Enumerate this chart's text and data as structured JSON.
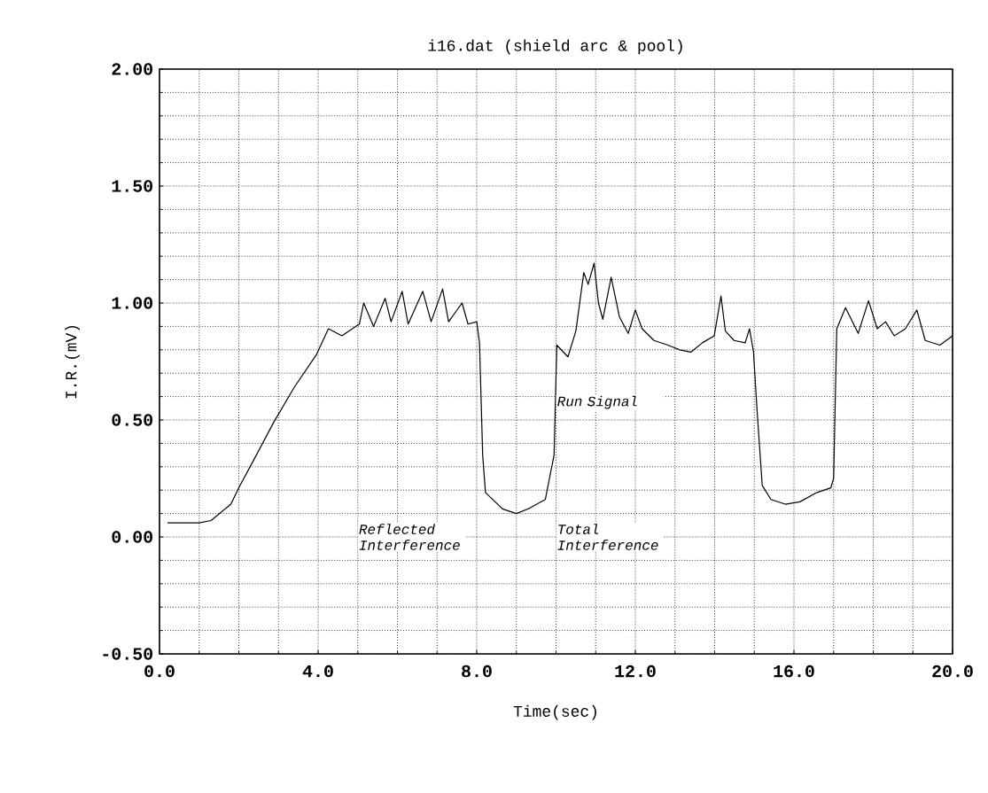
{
  "chart_data": {
    "type": "line",
    "title": "i16.dat (shield arc & pool)",
    "xlabel": "Time(sec)",
    "ylabel": "I.R.(mV)",
    "xlim": [
      0,
      20
    ],
    "ylim": [
      -0.5,
      2
    ],
    "xticks": [
      {
        "value": 0,
        "label": "0.0"
      },
      {
        "value": 4,
        "label": "4.0"
      },
      {
        "value": 8,
        "label": "8.0"
      },
      {
        "value": 12,
        "label": "12.0"
      },
      {
        "value": 16,
        "label": "16.0"
      },
      {
        "value": 20,
        "label": "20.0"
      }
    ],
    "yticks": [
      {
        "value": -0.5,
        "label": "-0.50"
      },
      {
        "value": 0,
        "label": "0.00"
      },
      {
        "value": 0.5,
        "label": "0.50"
      },
      {
        "value": 1,
        "label": "1.00"
      },
      {
        "value": 1.5,
        "label": "1.50"
      },
      {
        "value": 2,
        "label": "2.00"
      }
    ],
    "grid": true,
    "color": "#000000",
    "line_style": "solid",
    "x": [
      0.2,
      1.0,
      1.3,
      1.8,
      2.0,
      2.38,
      2.88,
      3.4,
      3.96,
      4.26,
      4.6,
      5.04,
      5.15,
      5.4,
      5.69,
      5.84,
      6.12,
      6.27,
      6.64,
      6.85,
      7.14,
      7.29,
      7.63,
      7.78,
      8.0,
      8.07,
      8.15,
      8.22,
      8.65,
      9.0,
      9.3,
      9.73,
      9.95,
      10.02,
      10.3,
      10.5,
      10.7,
      10.81,
      10.96,
      11.07,
      11.18,
      11.39,
      11.6,
      11.82,
      12.0,
      12.17,
      12.47,
      12.82,
      13.12,
      13.4,
      13.69,
      13.99,
      14.16,
      14.27,
      14.49,
      14.77,
      14.88,
      14.98,
      15.07,
      15.2,
      15.42,
      15.78,
      16.15,
      16.58,
      16.93,
      17.0,
      17.08,
      17.3,
      17.62,
      17.88,
      18.1,
      18.31,
      18.53,
      18.81,
      19.1,
      19.31,
      19.68,
      20.0
    ],
    "values": [
      0.06,
      0.06,
      0.07,
      0.14,
      0.21,
      0.33,
      0.49,
      0.64,
      0.78,
      0.89,
      0.86,
      0.91,
      1.0,
      0.9,
      1.02,
      0.92,
      1.05,
      0.91,
      1.05,
      0.92,
      1.06,
      0.92,
      1.0,
      0.91,
      0.92,
      0.83,
      0.35,
      0.19,
      0.12,
      0.1,
      0.12,
      0.16,
      0.35,
      0.82,
      0.77,
      0.88,
      1.13,
      1.08,
      1.17,
      1.0,
      0.93,
      1.11,
      0.94,
      0.87,
      0.97,
      0.89,
      0.84,
      0.82,
      0.8,
      0.79,
      0.83,
      0.86,
      1.03,
      0.88,
      0.84,
      0.83,
      0.89,
      0.79,
      0.54,
      0.22,
      0.16,
      0.14,
      0.15,
      0.19,
      0.21,
      0.25,
      0.89,
      0.98,
      0.87,
      1.01,
      0.89,
      0.92,
      0.86,
      0.89,
      0.97,
      0.84,
      0.82,
      0.86
    ],
    "annotations": [
      "Reflected Interference",
      "Run Signal",
      "Total Interference"
    ]
  }
}
